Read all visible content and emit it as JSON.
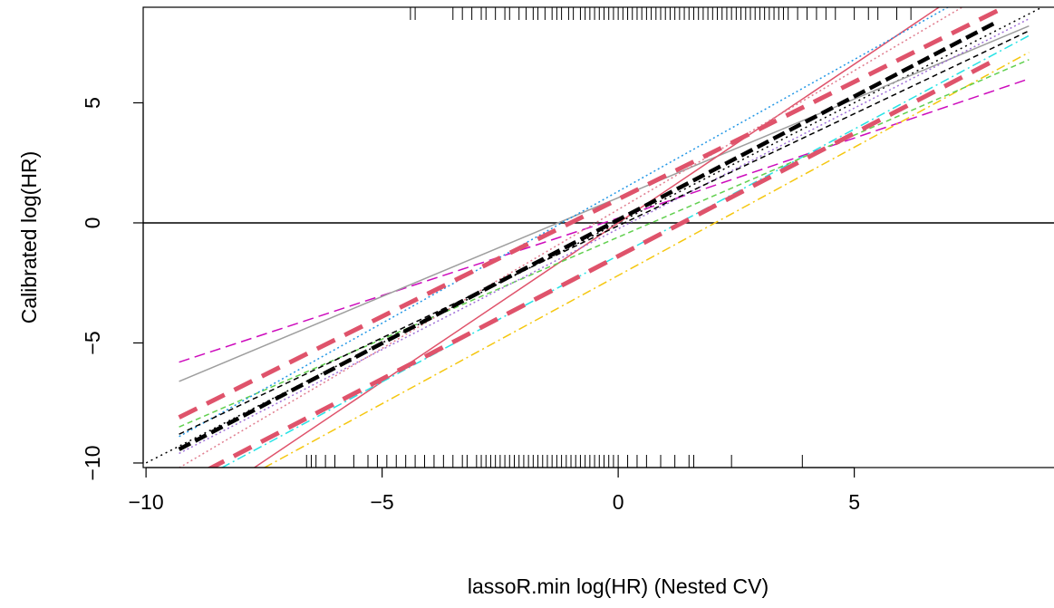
{
  "chart_data": {
    "type": "line",
    "x_label": "lassoR.min log(HR) (Nested CV)",
    "y_label": "Calibrated log(HR)",
    "xlim": [
      -10.06,
      9.23
    ],
    "ylim": [
      -10.19,
      8.98
    ],
    "xticks": [
      {
        "value": -10,
        "label": "−10"
      },
      {
        "value": -5,
        "label": "−5"
      },
      0,
      5
    ],
    "yticks": [
      {
        "value": -10,
        "label": "−10"
      },
      {
        "value": -5,
        "label": "−5"
      },
      0,
      5
    ],
    "hline": 0,
    "rug_top": [
      -4.4,
      -4.3,
      -3.5,
      -3.3,
      -3.1,
      -2.9,
      -2.8,
      -2.6,
      -2.4,
      -2.3,
      -2.1,
      -1.95,
      -1.8,
      -1.7,
      -1.55,
      -1.4,
      -1.3,
      -1.2,
      -1.05,
      -0.95,
      -0.8,
      -0.7,
      -0.6,
      -0.5,
      -0.4,
      -0.3,
      -0.2,
      -0.1,
      0.0,
      0.1,
      0.2,
      0.3,
      0.4,
      0.5,
      0.6,
      0.7,
      0.8,
      0.9,
      1.0,
      1.1,
      1.2,
      1.3,
      1.4,
      1.5,
      1.6,
      1.7,
      1.8,
      1.9,
      2.0,
      2.1,
      2.2,
      2.3,
      2.4,
      2.5,
      2.6,
      2.7,
      2.8,
      2.9,
      3.0,
      3.1,
      3.2,
      3.3,
      3.4,
      3.5,
      3.6,
      3.8,
      4.0,
      4.2,
      4.4,
      4.6,
      5.0,
      5.3,
      5.5,
      5.9,
      6.2
    ],
    "rug_bottom": [
      -6.6,
      -6.5,
      -6.4,
      -6.2,
      -6.0,
      -5.6,
      -5.3,
      -5.1,
      -4.9,
      -4.7,
      -4.5,
      -4.3,
      -4.1,
      -3.9,
      -3.7,
      -3.5,
      -3.3,
      -3.2,
      -3.0,
      -2.9,
      -2.8,
      -2.7,
      -2.6,
      -2.5,
      -2.4,
      -2.3,
      -2.2,
      -2.1,
      -2.0,
      -1.9,
      -1.8,
      -1.7,
      -1.6,
      -1.5,
      -1.4,
      -1.3,
      -1.2,
      -1.1,
      -1.0,
      -0.9,
      -0.8,
      -0.7,
      -0.6,
      -0.5,
      -0.4,
      -0.3,
      -0.2,
      -0.1,
      0.0,
      0.2,
      0.4,
      0.6,
      0.9,
      1.2,
      1.5,
      1.6,
      2.4,
      3.9
    ],
    "series": [
      {
        "color": "#000000",
        "dash": "2 4",
        "width": 1.5,
        "x": [
          -10.1,
          9.3
        ],
        "values": [
          -10.1,
          9.3
        ]
      },
      {
        "color": "#CD0BBC",
        "dash": "12 6",
        "width": 1.5,
        "x": [
          -9.3,
          0,
          8.7
        ],
        "values": [
          -5.8,
          0.2,
          6.0
        ]
      },
      {
        "color": "#9E9E9E",
        "dash": "",
        "width": 1.5,
        "x": [
          -9.3,
          8.7
        ],
        "values": [
          -6.6,
          8.2
        ]
      },
      {
        "color": "#DF536B",
        "dash": "",
        "width": 1.5,
        "x": [
          -9.3,
          8.7
        ],
        "values": [
          -12.3,
          11.5
        ]
      },
      {
        "color": "#F5C710",
        "dash": "10 4 2 4",
        "width": 1.5,
        "x": [
          -7.5,
          8.7
        ],
        "values": [
          -10.2,
          7.1
        ]
      },
      {
        "color": "#28E2E5",
        "dash": "10 4 2 4",
        "width": 1.5,
        "x": [
          -8.4,
          8.7
        ],
        "values": [
          -10.2,
          7.8
        ]
      },
      {
        "color": "#61D04F",
        "dash": "6 4",
        "width": 1.5,
        "x": [
          -9.3,
          8.7
        ],
        "values": [
          -8.5,
          6.8
        ]
      },
      {
        "color": "#9F6FD8",
        "dash": "2 3",
        "width": 1.5,
        "x": [
          -9.3,
          8.7
        ],
        "values": [
          -9.6,
          8.5
        ]
      },
      {
        "color": "#2297E6",
        "dash": "2 3",
        "width": 1.5,
        "x": [
          -9.3,
          7.0
        ],
        "values": [
          -8.9,
          9.0
        ]
      },
      {
        "color": "#E07C8E",
        "dash": "2 3",
        "width": 1.5,
        "x": [
          -9.3,
          7.3
        ],
        "values": [
          -10.2,
          9.0
        ]
      },
      {
        "color": "#000000",
        "dash": "6 4",
        "width": 1.5,
        "x": [
          -9.3,
          8.7
        ],
        "values": [
          -8.8,
          8.0
        ]
      },
      {
        "color": "#DF536B",
        "dash": "22 12",
        "width": 5,
        "x": [
          -9.3,
          8.1
        ],
        "values": [
          -8.1,
          8.9
        ]
      },
      {
        "color": "#DF536B",
        "dash": "22 12",
        "width": 5,
        "x": [
          -9.3,
          8.0
        ],
        "values": [
          -10.9,
          6.8
        ]
      },
      {
        "color": "#000000",
        "dash": "14 6",
        "width": 4.5,
        "x": [
          -9.3,
          8.0
        ],
        "values": [
          -9.43,
          8.35
        ]
      }
    ]
  }
}
